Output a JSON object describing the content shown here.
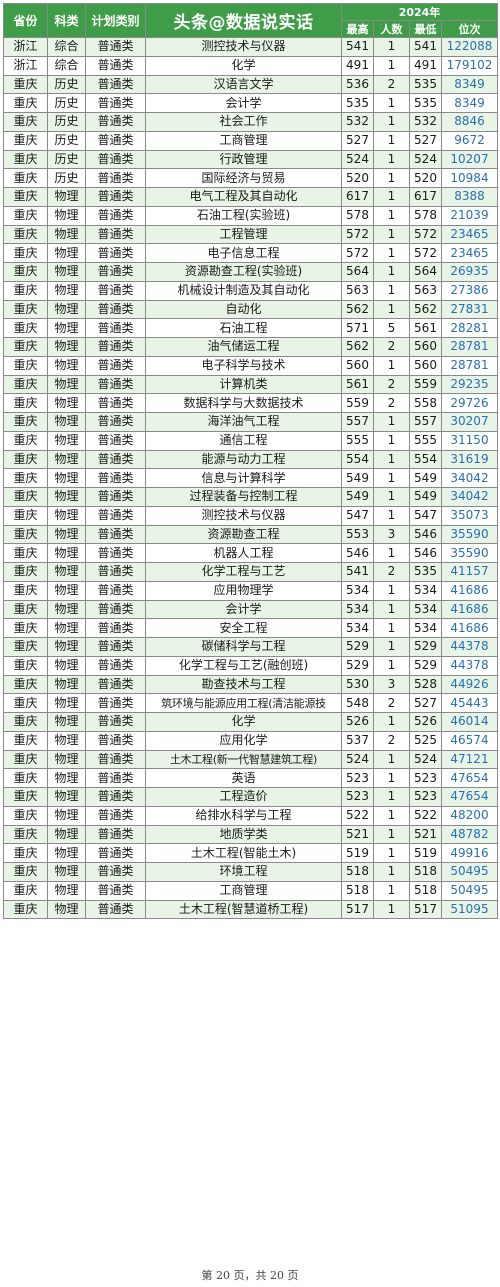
{
  "header": {
    "province": "省份",
    "subject": "科类",
    "plan": "计划类别",
    "title": "头条@数据说实话",
    "year": "2024年",
    "max": "最高",
    "count": "人数",
    "min": "最低",
    "rank": "位次"
  },
  "rows": [
    [
      "浙江",
      "综合",
      "普通类",
      "测控技术与仪器",
      "541",
      "1",
      "541",
      "122088"
    ],
    [
      "浙江",
      "综合",
      "普通类",
      "化学",
      "491",
      "1",
      "491",
      "179102"
    ],
    [
      "重庆",
      "历史",
      "普通类",
      "汉语言文学",
      "536",
      "2",
      "535",
      "8349"
    ],
    [
      "重庆",
      "历史",
      "普通类",
      "会计学",
      "535",
      "1",
      "535",
      "8349"
    ],
    [
      "重庆",
      "历史",
      "普通类",
      "社会工作",
      "532",
      "1",
      "532",
      "8846"
    ],
    [
      "重庆",
      "历史",
      "普通类",
      "工商管理",
      "527",
      "1",
      "527",
      "9672"
    ],
    [
      "重庆",
      "历史",
      "普通类",
      "行政管理",
      "524",
      "1",
      "524",
      "10207"
    ],
    [
      "重庆",
      "历史",
      "普通类",
      "国际经济与贸易",
      "520",
      "1",
      "520",
      "10984"
    ],
    [
      "重庆",
      "物理",
      "普通类",
      "电气工程及其自动化",
      "617",
      "1",
      "617",
      "8388"
    ],
    [
      "重庆",
      "物理",
      "普通类",
      "石油工程(实验班)",
      "578",
      "1",
      "578",
      "21039"
    ],
    [
      "重庆",
      "物理",
      "普通类",
      "工程管理",
      "572",
      "1",
      "572",
      "23465"
    ],
    [
      "重庆",
      "物理",
      "普通类",
      "电子信息工程",
      "572",
      "1",
      "572",
      "23465"
    ],
    [
      "重庆",
      "物理",
      "普通类",
      "资源勘查工程(实验班)",
      "564",
      "1",
      "564",
      "26935"
    ],
    [
      "重庆",
      "物理",
      "普通类",
      "机械设计制造及其自动化",
      "563",
      "1",
      "563",
      "27386"
    ],
    [
      "重庆",
      "物理",
      "普通类",
      "自动化",
      "562",
      "1",
      "562",
      "27831"
    ],
    [
      "重庆",
      "物理",
      "普通类",
      "石油工程",
      "571",
      "5",
      "561",
      "28281"
    ],
    [
      "重庆",
      "物理",
      "普通类",
      "油气储运工程",
      "562",
      "2",
      "560",
      "28781"
    ],
    [
      "重庆",
      "物理",
      "普通类",
      "电子科学与技术",
      "560",
      "1",
      "560",
      "28781"
    ],
    [
      "重庆",
      "物理",
      "普通类",
      "计算机类",
      "561",
      "2",
      "559",
      "29235"
    ],
    [
      "重庆",
      "物理",
      "普通类",
      "数据科学与大数据技术",
      "559",
      "2",
      "558",
      "29726"
    ],
    [
      "重庆",
      "物理",
      "普通类",
      "海洋油气工程",
      "557",
      "1",
      "557",
      "30207"
    ],
    [
      "重庆",
      "物理",
      "普通类",
      "通信工程",
      "555",
      "1",
      "555",
      "31150"
    ],
    [
      "重庆",
      "物理",
      "普通类",
      "能源与动力工程",
      "554",
      "1",
      "554",
      "31619"
    ],
    [
      "重庆",
      "物理",
      "普通类",
      "信息与计算科学",
      "549",
      "1",
      "549",
      "34042"
    ],
    [
      "重庆",
      "物理",
      "普通类",
      "过程装备与控制工程",
      "549",
      "1",
      "549",
      "34042"
    ],
    [
      "重庆",
      "物理",
      "普通类",
      "测控技术与仪器",
      "547",
      "1",
      "547",
      "35073"
    ],
    [
      "重庆",
      "物理",
      "普通类",
      "资源勘查工程",
      "553",
      "3",
      "546",
      "35590"
    ],
    [
      "重庆",
      "物理",
      "普通类",
      "机器人工程",
      "546",
      "1",
      "546",
      "35590"
    ],
    [
      "重庆",
      "物理",
      "普通类",
      "化学工程与工艺",
      "541",
      "2",
      "535",
      "41157"
    ],
    [
      "重庆",
      "物理",
      "普通类",
      "应用物理学",
      "534",
      "1",
      "534",
      "41686"
    ],
    [
      "重庆",
      "物理",
      "普通类",
      "会计学",
      "534",
      "1",
      "534",
      "41686"
    ],
    [
      "重庆",
      "物理",
      "普通类",
      "安全工程",
      "534",
      "1",
      "534",
      "41686"
    ],
    [
      "重庆",
      "物理",
      "普通类",
      "碳储科学与工程",
      "529",
      "1",
      "529",
      "44378"
    ],
    [
      "重庆",
      "物理",
      "普通类",
      "化学工程与工艺(融创班)",
      "529",
      "1",
      "529",
      "44378"
    ],
    [
      "重庆",
      "物理",
      "普通类",
      "勘查技术与工程",
      "530",
      "3",
      "528",
      "44926"
    ],
    [
      "重庆",
      "物理",
      "普通类",
      "筑环境与能源应用工程(清洁能源技",
      "548",
      "2",
      "527",
      "45443"
    ],
    [
      "重庆",
      "物理",
      "普通类",
      "化学",
      "526",
      "1",
      "526",
      "46014"
    ],
    [
      "重庆",
      "物理",
      "普通类",
      "应用化学",
      "537",
      "2",
      "525",
      "46574"
    ],
    [
      "重庆",
      "物理",
      "普通类",
      "土木工程(新一代智慧建筑工程)",
      "524",
      "1",
      "524",
      "47121"
    ],
    [
      "重庆",
      "物理",
      "普通类",
      "英语",
      "523",
      "1",
      "523",
      "47654"
    ],
    [
      "重庆",
      "物理",
      "普通类",
      "工程造价",
      "523",
      "1",
      "523",
      "47654"
    ],
    [
      "重庆",
      "物理",
      "普通类",
      "给排水科学与工程",
      "522",
      "1",
      "522",
      "48200"
    ],
    [
      "重庆",
      "物理",
      "普通类",
      "地质学类",
      "521",
      "1",
      "521",
      "48782"
    ],
    [
      "重庆",
      "物理",
      "普通类",
      "土木工程(智能土木)",
      "519",
      "1",
      "519",
      "49916"
    ],
    [
      "重庆",
      "物理",
      "普通类",
      "环境工程",
      "518",
      "1",
      "518",
      "50495"
    ],
    [
      "重庆",
      "物理",
      "普通类",
      "工商管理",
      "518",
      "1",
      "518",
      "50495"
    ],
    [
      "重庆",
      "物理",
      "普通类",
      "土木工程(智慧道桥工程)",
      "517",
      "1",
      "517",
      "51095"
    ]
  ],
  "footer": "第 20 页，共 20 页"
}
